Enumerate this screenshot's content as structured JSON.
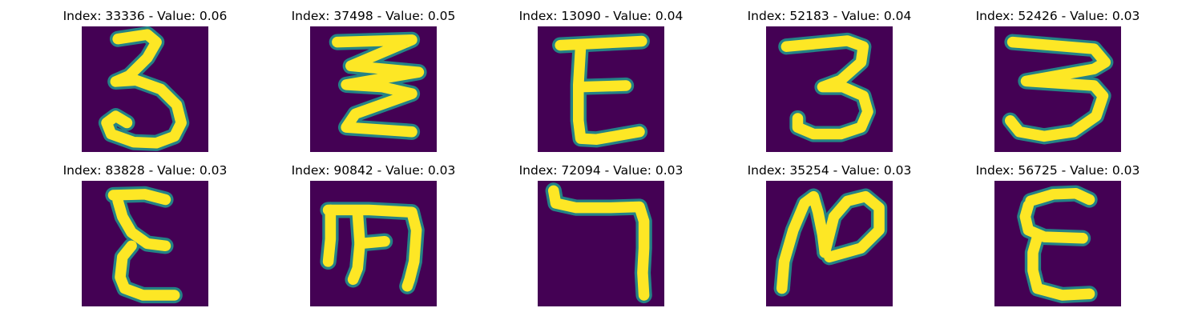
{
  "colors": {
    "background": "#440154",
    "edge": "#21918c",
    "stroke": "#fde725"
  },
  "panels": [
    {
      "title": "Index: 33336 - Value: 0.06",
      "glyph": "digit-3"
    },
    {
      "title": "Index: 37498 - Value: 0.05",
      "glyph": "zigzag-3"
    },
    {
      "title": "Index: 13090 - Value: 0.04",
      "glyph": "e-epsilon"
    },
    {
      "title": "Index: 52183 - Value: 0.04",
      "glyph": "small-3"
    },
    {
      "title": "Index: 52426 - Value: 0.03",
      "glyph": "wide-3"
    },
    {
      "title": "Index: 83828 - Value: 0.03",
      "glyph": "epsilon"
    },
    {
      "title": "Index: 90842 - Value: 0.03",
      "glyph": "rotated-m"
    },
    {
      "title": "Index: 72094 - Value: 0.03",
      "glyph": "seven-hook"
    },
    {
      "title": "Index: 35254 - Value: 0.03",
      "glyph": "slanted-n"
    },
    {
      "title": "Index: 56725 - Value: 0.03",
      "glyph": "epsilon-alt"
    }
  ]
}
